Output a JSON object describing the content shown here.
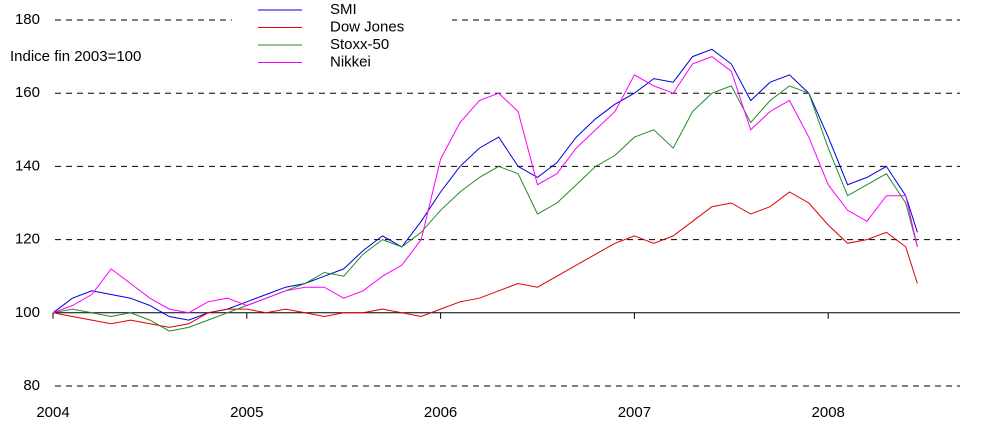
{
  "chart_data": {
    "type": "line",
    "annotation": "Indice fin 2003=100",
    "x": [
      2004.0,
      2004.1,
      2004.2,
      2004.3,
      2004.4,
      2004.5,
      2004.6,
      2004.7,
      2004.8,
      2004.9,
      2005.0,
      2005.1,
      2005.2,
      2005.3,
      2005.4,
      2005.5,
      2005.6,
      2005.7,
      2005.8,
      2005.9,
      2006.0,
      2006.1,
      2006.2,
      2006.3,
      2006.4,
      2006.5,
      2006.6,
      2006.7,
      2006.8,
      2006.9,
      2007.0,
      2007.1,
      2007.2,
      2007.3,
      2007.4,
      2007.5,
      2007.6,
      2007.7,
      2007.8,
      2007.9,
      2008.0,
      2008.1,
      2008.2,
      2008.3,
      2008.4,
      2008.46
    ],
    "series": [
      {
        "name": "SMI",
        "color": "#0000dd",
        "values": [
          100,
          104,
          106,
          105,
          104,
          102,
          99,
          98,
          100,
          101,
          103,
          105,
          107,
          108,
          110,
          112,
          117,
          121,
          118,
          125,
          133,
          140,
          145,
          148,
          140,
          137,
          141,
          148,
          153,
          157,
          160,
          164,
          163,
          170,
          172,
          168,
          158,
          163,
          165,
          160,
          148,
          135,
          137,
          140,
          132,
          122
        ]
      },
      {
        "name": "Dow Jones",
        "color": "#dd0000",
        "values": [
          100,
          99,
          98,
          97,
          98,
          97,
          96,
          97,
          100,
          101,
          101,
          100,
          101,
          100,
          99,
          100,
          100,
          101,
          100,
          99,
          101,
          103,
          104,
          106,
          108,
          107,
          110,
          113,
          116,
          119,
          121,
          119,
          121,
          125,
          129,
          130,
          127,
          129,
          133,
          130,
          124,
          119,
          120,
          122,
          118,
          108
        ]
      },
      {
        "name": "Stoxx-50",
        "color": "#228b22",
        "values": [
          100,
          101,
          100,
          99,
          100,
          98,
          95,
          96,
          98,
          100,
          102,
          104,
          106,
          108,
          111,
          110,
          116,
          120,
          118,
          122,
          128,
          133,
          137,
          140,
          138,
          127,
          130,
          135,
          140,
          143,
          148,
          150,
          145,
          155,
          160,
          162,
          152,
          158,
          162,
          160,
          145,
          132,
          135,
          138,
          130,
          118
        ]
      },
      {
        "name": "Nikkei",
        "color": "#ff00ff",
        "values": [
          100,
          102,
          105,
          112,
          108,
          104,
          101,
          100,
          103,
          104,
          102,
          104,
          106,
          107,
          107,
          104,
          106,
          110,
          113,
          120,
          142,
          152,
          158,
          160,
          155,
          135,
          138,
          145,
          150,
          155,
          165,
          162,
          160,
          168,
          170,
          166,
          150,
          155,
          158,
          148,
          135,
          128,
          125,
          132,
          132,
          118
        ]
      }
    ],
    "xlim": [
      2004,
      2008.68
    ],
    "xticks": [
      2004,
      2005,
      2006,
      2007,
      2008
    ],
    "ylim": [
      80,
      180
    ],
    "yticks": [
      80,
      100,
      120,
      140,
      160,
      180
    ],
    "x_axis_at": 100,
    "grid": true
  }
}
